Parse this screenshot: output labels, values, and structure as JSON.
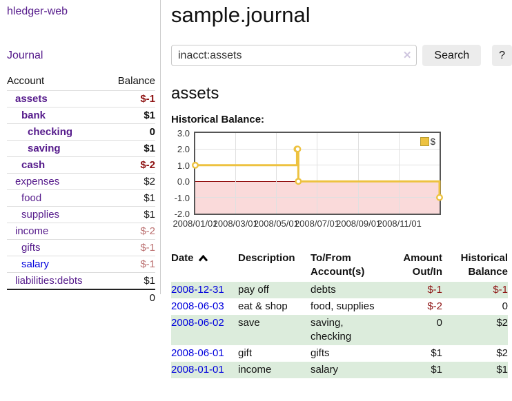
{
  "colors": {
    "link_visited": "#551a8b",
    "link_unvisited": "#0000dd",
    "negative": "#8e1313",
    "negative_dim": "#bb6f6f",
    "row_stripe_green": "#dcecdc",
    "chart_line_gold": "#EDC240",
    "chart_negative_region": "#fadada",
    "chart_zero_line": "#8b0000",
    "button_bg": "#ececec"
  },
  "sidebar": {
    "brand": "hledger-web",
    "journal_link": "Journal",
    "headers": {
      "account": "Account",
      "balance": "Balance"
    },
    "accounts": [
      {
        "name": "assets",
        "balance": "$-1"
      },
      {
        "name": "bank",
        "balance": "$1"
      },
      {
        "name": "checking",
        "balance": "0"
      },
      {
        "name": "saving",
        "balance": "$1"
      },
      {
        "name": "cash",
        "balance": "$-2"
      },
      {
        "name": "expenses",
        "balance": "$2"
      },
      {
        "name": "food",
        "balance": "$1"
      },
      {
        "name": "supplies",
        "balance": "$1"
      },
      {
        "name": "income",
        "balance": "$-2"
      },
      {
        "name": "gifts",
        "balance": "$-1"
      },
      {
        "name": "salary",
        "balance": "$-1"
      },
      {
        "name": "liabilities:debts",
        "balance": "$1"
      }
    ],
    "total_balance": "0"
  },
  "main": {
    "title": "sample.journal",
    "search": {
      "value": "inacct:assets",
      "clear_icon": "✕",
      "button_label": "Search",
      "help_label": "?"
    },
    "section_title": "assets",
    "chart_label": "Historical Balance:",
    "table": {
      "headers": {
        "date": "Date",
        "description": "Description",
        "accounts": "To/From\nAccount(s)",
        "amount": "Amount\nOut/In",
        "balance": "Historical\nBalance"
      },
      "rows": [
        {
          "date": "2008-12-31",
          "description": "pay off",
          "accounts": "debts",
          "amount": "$-1",
          "balance": "$-1"
        },
        {
          "date": "2008-06-03",
          "description": "eat & shop",
          "accounts": "food, supplies",
          "amount": "$-2",
          "balance": "0"
        },
        {
          "date": "2008-06-02",
          "description": "save",
          "accounts": "saving, checking",
          "amount": "0",
          "balance": "$2"
        },
        {
          "date": "2008-06-01",
          "description": "gift",
          "accounts": "gifts",
          "amount": "$1",
          "balance": "$2"
        },
        {
          "date": "2008-01-01",
          "description": "income",
          "accounts": "salary",
          "amount": "$1",
          "balance": "$1"
        }
      ]
    }
  },
  "chart_data": {
    "type": "line",
    "step": true,
    "title": "Historical Balance:",
    "x_range": [
      "2008-01-01",
      "2008-12-31"
    ],
    "y_range": [
      -2,
      3
    ],
    "x_ticks": [
      "2008/01/01",
      "2008/03/01",
      "2008/05/01",
      "2008/07/01",
      "2008/09/01",
      "2008/11/01"
    ],
    "y_ticks": [
      "3.0",
      "2.0",
      "1.0",
      "0.0",
      "-1.0",
      "-2.0"
    ],
    "grid": true,
    "legend_position": "top-right",
    "series": [
      {
        "name": "$",
        "color": "#EDC240",
        "points": [
          [
            "2008-01-01",
            1
          ],
          [
            "2008-06-01",
            2
          ],
          [
            "2008-06-02",
            2
          ],
          [
            "2008-06-03",
            0
          ],
          [
            "2008-12-31",
            -1
          ]
        ]
      }
    ]
  }
}
